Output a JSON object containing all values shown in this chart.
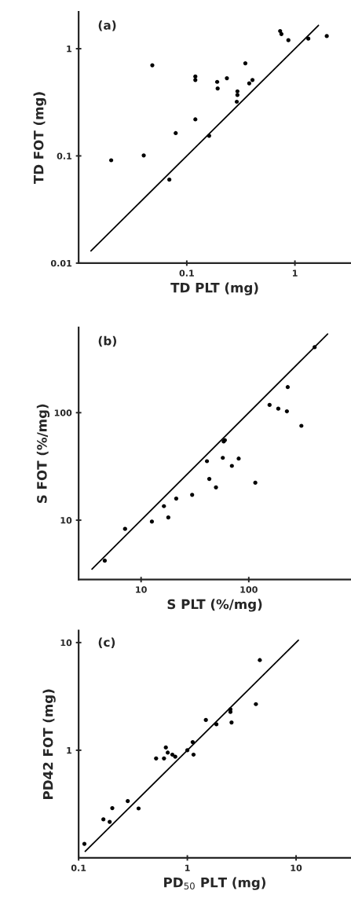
{
  "chart_data": [
    {
      "type": "scatter",
      "xlabel": "TD PLT (mg)",
      "ylabel": "TD FOT (mg)",
      "annotations": [
        "(a)"
      ],
      "log": "xy",
      "xlim": [
        0.01,
        3.3
      ],
      "ylim": [
        0.01,
        2.2
      ],
      "xticks": [
        0.1,
        1
      ],
      "yticks": [
        0.01,
        0.1,
        1
      ],
      "grid": false,
      "marker": "circle",
      "series": [
        {
          "color": "#000000",
          "x": [
            0.02,
            0.04,
            0.048,
            0.069,
            0.079,
            0.12,
            0.12,
            0.12,
            0.161,
            0.191,
            0.193,
            0.235,
            0.294,
            0.294,
            0.29,
            0.348,
            0.378,
            0.405,
            0.73,
            0.75,
            0.87,
            1.33,
            1.97
          ],
          "values": [
            0.091,
            0.101,
            0.7,
            0.06,
            0.163,
            0.55,
            0.51,
            0.219,
            0.154,
            0.49,
            0.425,
            0.53,
            0.4,
            0.37,
            0.32,
            0.73,
            0.475,
            0.51,
            1.46,
            1.37,
            1.2,
            1.24,
            1.31
          ]
        },
        {
          "type": "line",
          "marker": "none",
          "color": "#000000",
          "x": [
            0.013,
            1.65
          ],
          "values": [
            0.013,
            1.65
          ]
        }
      ]
    },
    {
      "type": "scatter",
      "xlabel": "S PLT (%/mg)",
      "ylabel": "S FOT (%/mg)",
      "annotations": [
        "(b)"
      ],
      "log": "xy",
      "xlim": [
        2.63,
        890
      ],
      "ylim": [
        2.8,
        620
      ],
      "xticks": [
        10,
        100
      ],
      "yticks": [
        10,
        100
      ],
      "grid": false,
      "marker": "circle",
      "series": [
        {
          "color": "#000000",
          "x": [
            4.6,
            7.1,
            12.6,
            16.3,
            17.9,
            21.2,
            29.8,
            40.9,
            43.0,
            49.6,
            57.4,
            58.5,
            60,
            69.7,
            80.6,
            115,
            156,
            188,
            226,
            230,
            308,
            409
          ],
          "values": [
            4.2,
            8.3,
            9.7,
            13.5,
            10.6,
            15.9,
            17.2,
            35.4,
            24.2,
            20.2,
            38.0,
            54,
            55.5,
            32.0,
            37.4,
            22.3,
            118,
            109,
            103,
            173,
            75.5,
            407
          ]
        },
        {
          "type": "line",
          "marker": "none",
          "color": "#000000",
          "x": [
            3.5,
            540
          ],
          "values": [
            3.5,
            540
          ]
        }
      ]
    },
    {
      "type": "scatter",
      "xlabel": "PD$_{50}$ PLT (mg)",
      "ylabel": "PD42 FOT (mg)",
      "annotations": [
        "(c)"
      ],
      "log": "xy",
      "xlim": [
        0.1,
        32
      ],
      "ylim": [
        0.1,
        12.9
      ],
      "xticks": [
        0.1,
        1,
        10
      ],
      "yticks": [
        1,
        10
      ],
      "grid": false,
      "marker": "circle",
      "series": [
        {
          "color": "#000000",
          "x": [
            0.113,
            0.169,
            0.193,
            0.204,
            0.283,
            0.356,
            0.516,
            0.61,
            0.634,
            0.66,
            0.728,
            0.774,
            1.0,
            1.12,
            1.14,
            1.48,
            1.85,
            2.49,
            2.49,
            2.55,
            4.27,
            4.64
          ],
          "values": [
            0.135,
            0.228,
            0.216,
            0.29,
            0.337,
            0.288,
            0.84,
            0.84,
            1.06,
            0.95,
            0.91,
            0.87,
            1.0,
            1.19,
            0.91,
            1.91,
            1.74,
            2.4,
            2.27,
            1.81,
            2.68,
            6.87
          ]
        },
        {
          "type": "line",
          "marker": "none",
          "color": "#000000",
          "x": [
            0.115,
            10.5
          ],
          "values": [
            0.115,
            10.5
          ]
        }
      ]
    }
  ]
}
